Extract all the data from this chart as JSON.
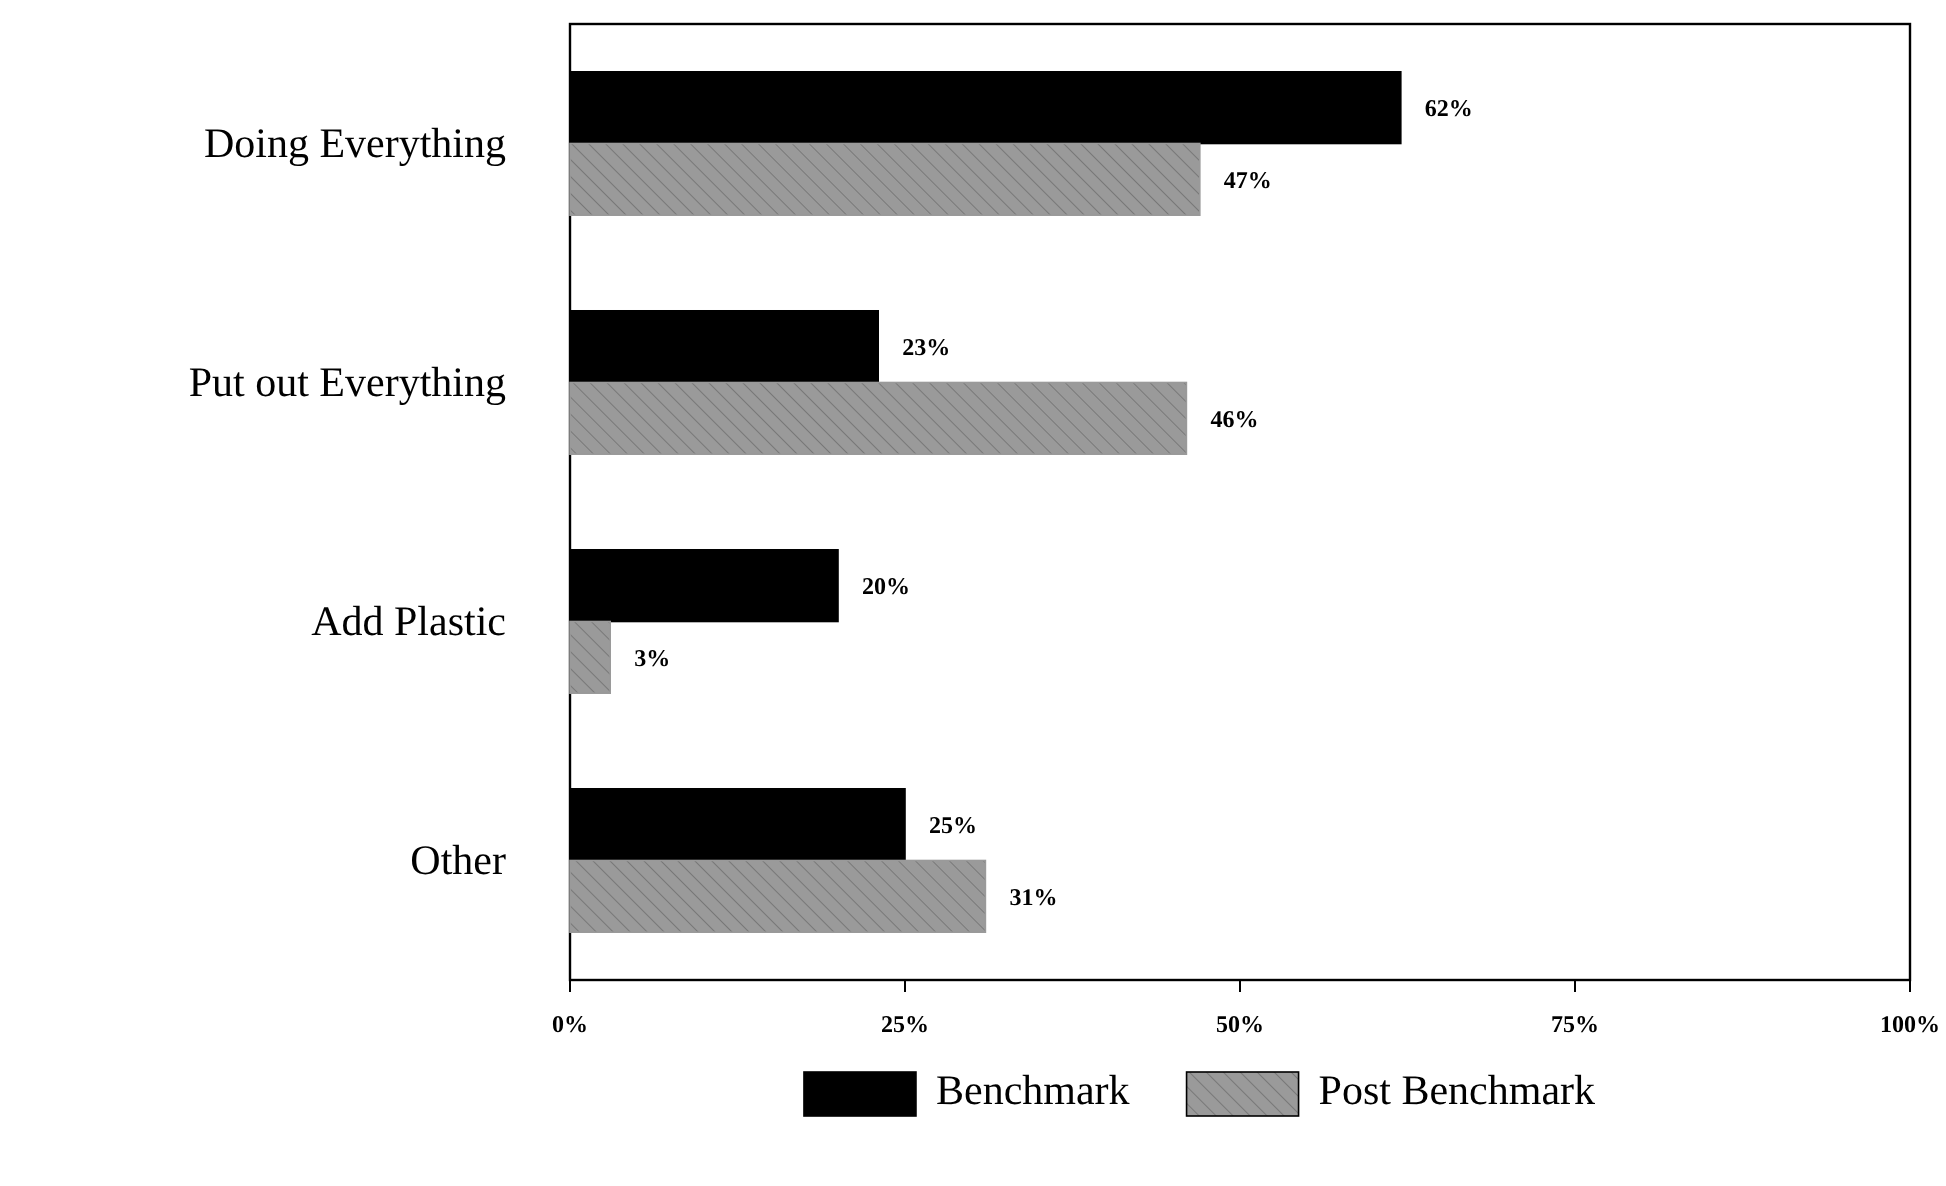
{
  "chart_data": {
    "type": "bar",
    "orientation": "horizontal",
    "categories": [
      "Doing Everything",
      "Put out Everything",
      "Add Plastic",
      "Other"
    ],
    "series": [
      {
        "name": "Benchmark",
        "color": "#000000",
        "values": [
          62,
          23,
          20,
          25
        ],
        "value_labels": [
          "62%",
          "23%",
          "20%",
          "25%"
        ]
      },
      {
        "name": "Post Benchmark",
        "color": "#9a9a9a",
        "values": [
          47,
          46,
          3,
          31
        ],
        "value_labels": [
          "47%",
          "46%",
          "3%",
          "31%"
        ]
      }
    ],
    "xlim": [
      0,
      100
    ],
    "xticks": [
      {
        "value": 0,
        "label": "0%"
      },
      {
        "value": 25,
        "label": "25%"
      },
      {
        "value": 50,
        "label": "50%"
      },
      {
        "value": 75,
        "label": "75%"
      },
      {
        "value": 100,
        "label": "100%"
      }
    ],
    "grid": false,
    "legend": "bottom"
  }
}
